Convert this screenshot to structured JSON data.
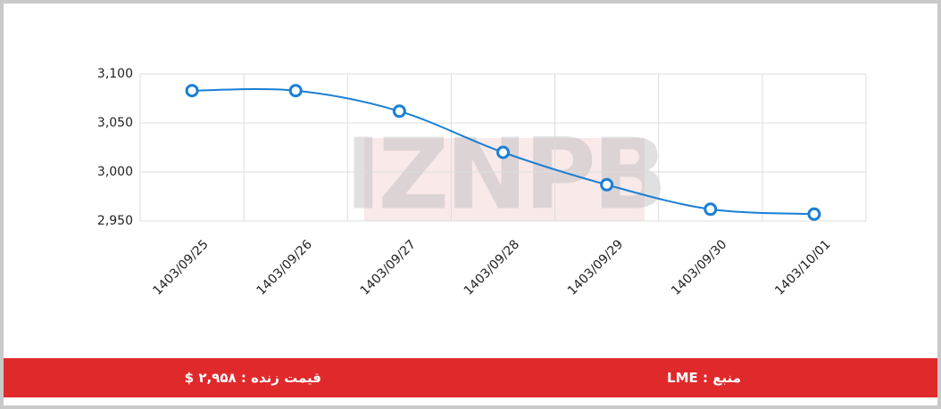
{
  "chart_data": {
    "type": "line",
    "categories": [
      "1403/09/25",
      "1403/09/26",
      "1403/09/27",
      "1403/09/28",
      "1403/09/29",
      "1403/09/30",
      "1403/10/01"
    ],
    "values": [
      3083,
      3083,
      3062,
      3020,
      2987,
      2962,
      2957
    ],
    "color": "#1a7fd4",
    "ylim": [
      2950,
      3100
    ],
    "yticks": [
      {
        "value": 2950,
        "label": "2,950"
      },
      {
        "value": 3000,
        "label": "3,000"
      },
      {
        "value": 3050,
        "label": "3,050"
      },
      {
        "value": 3100,
        "label": "3,100"
      }
    ],
    "grid": true,
    "watermark": "IZNPB"
  },
  "footer": {
    "source": "منبع : LME",
    "live_price": "قیمت زنده : ۲,۹۵۸ $"
  }
}
